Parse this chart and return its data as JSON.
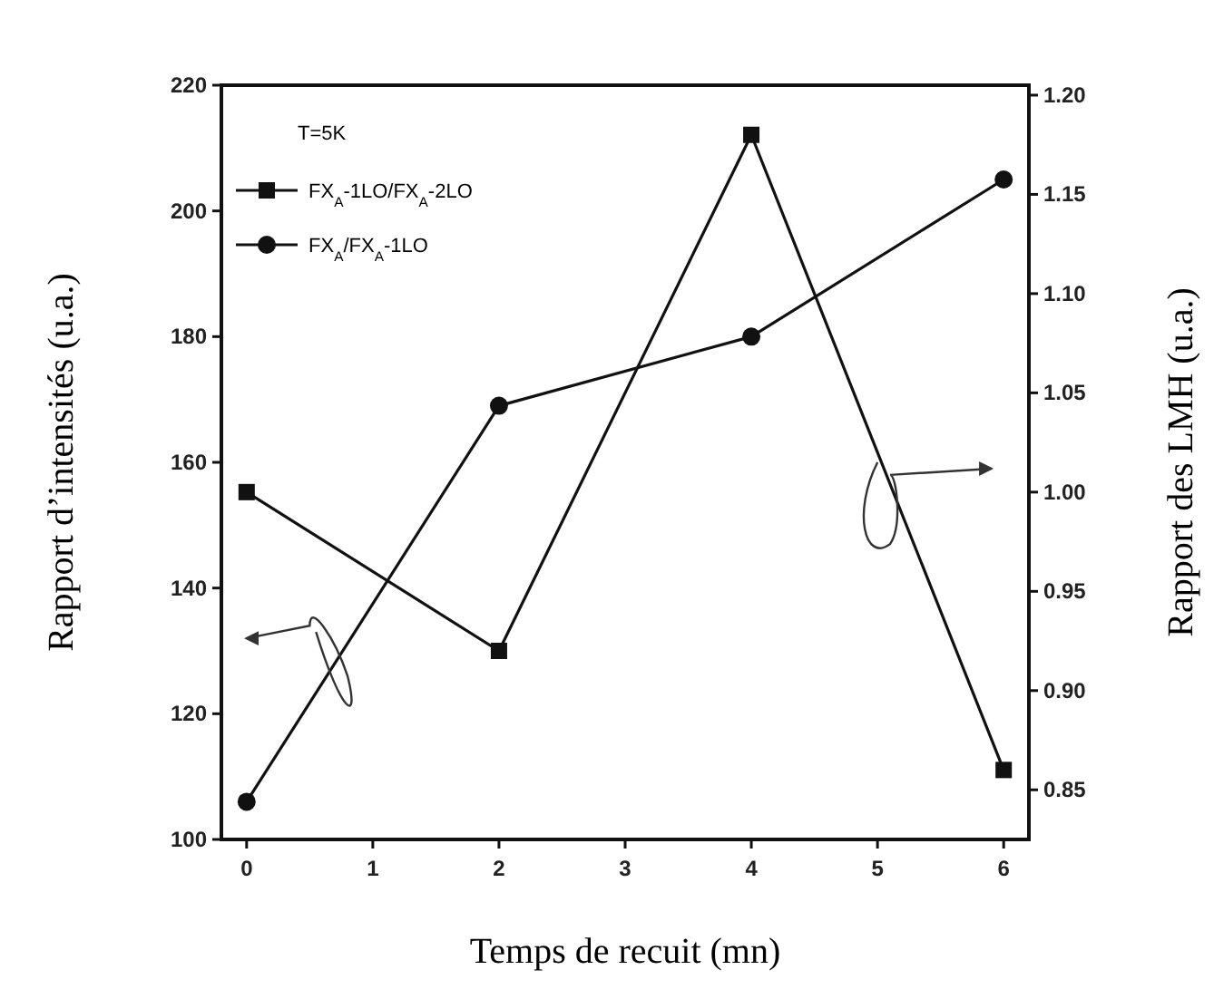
{
  "chart_data": {
    "type": "line",
    "xlabel": "Temps de recuit (mn)",
    "ylabel": "Rapport d’intensités (u.a.)",
    "y2label": "Rapport des LMH (u.a.)",
    "legend_title": "T=5K",
    "legend": "top left",
    "x": [
      0,
      2,
      4,
      6
    ],
    "xlim": [
      -0.2,
      6.2
    ],
    "xticks": [
      0,
      1,
      2,
      3,
      4,
      5,
      6
    ],
    "ylim": [
      100,
      220
    ],
    "yticks": [
      100,
      120,
      140,
      160,
      180,
      200,
      220
    ],
    "y2lim": [
      0.825,
      1.205
    ],
    "y2ticks": [
      {
        "value": 0.85,
        "label": "0.85"
      },
      {
        "value": 0.9,
        "label": "0.90"
      },
      {
        "value": 0.95,
        "label": "0.95"
      },
      {
        "value": 1.0,
        "label": "1.00"
      },
      {
        "value": 1.05,
        "label": "1.05"
      },
      {
        "value": 1.1,
        "label": "1.10"
      },
      {
        "value": 1.15,
        "label": "1.15"
      },
      {
        "value": 1.2,
        "label": "1.20"
      }
    ],
    "series": [
      {
        "name": "FX$_{A}$-1LO/FX$_{A}$-2LO",
        "color": "#111111",
        "marker": "square",
        "axis": "y2",
        "values": [
          1.0,
          0.92,
          1.18,
          0.86
        ]
      },
      {
        "name": "FX$_{A}$/FX$_{A}$-1LO",
        "color": "#111111",
        "marker": "circle",
        "values": [
          106,
          169,
          180,
          205
        ]
      }
    ]
  }
}
